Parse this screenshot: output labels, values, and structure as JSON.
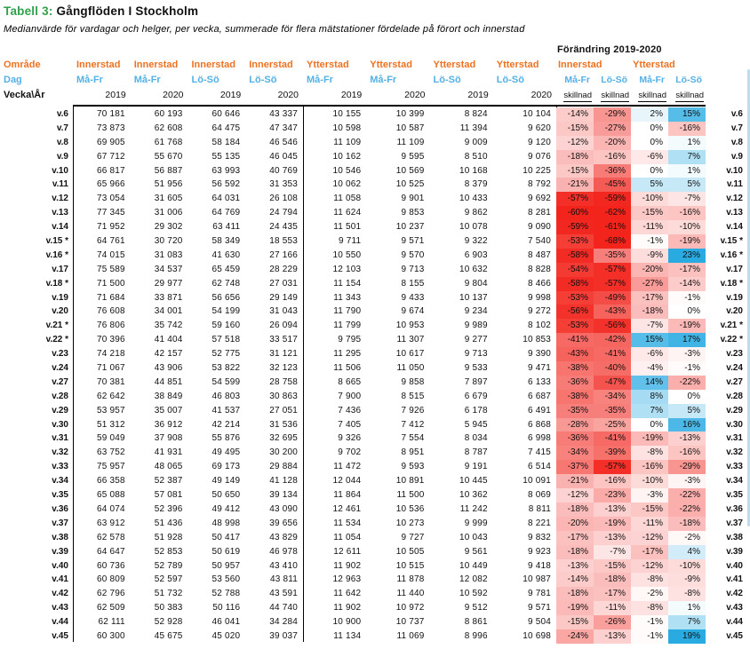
{
  "title": {
    "label": "Tabell 3:",
    "main": "Gångflöden I Stockholm"
  },
  "subtitle": "Medianvärde för vardagar och helger, per vecka, summerade för flera mätstationer fördelade på förort och innerstad",
  "table": {
    "row_labels": {
      "omrade": "Område",
      "dag": "Dag",
      "vecka": "Vecka\\År"
    },
    "area_cols": [
      "Innerstad",
      "Innerstad",
      "Innerstad",
      "Innerstad",
      "Ytterstad",
      "Ytterstad",
      "Ytterstad",
      "Ytterstad"
    ],
    "day_cols": [
      "Må-Fr",
      "Må-Fr",
      "Lö-Sö",
      "Lö-Sö",
      "Må-Fr",
      "Må-Fr",
      "Lö-Sö",
      "Lö-Sö"
    ],
    "year_cols": [
      "2019",
      "2020",
      "2019",
      "2020",
      "2019",
      "2020",
      "2019",
      "2020"
    ],
    "change": {
      "title": "Förändring 2019-2020",
      "groups": [
        "Innerstad",
        "Ytterstad"
      ],
      "days": [
        "Må-Fr",
        "Lö-Sö",
        "Må-Fr",
        "Lö-Sö"
      ],
      "skillnad": "skillnad"
    }
  },
  "colors": {
    "title_green": "#2FA14B",
    "area_orange": "#ED7221",
    "day_blue": "#53B1E6",
    "neg_full": "#F2241C",
    "pos_full": "#29ABE2",
    "scrollbar": "#BFDCEE"
  },
  "chart_data": {
    "type": "table",
    "columns": [
      "Vecka",
      "Innerstad Må-Fr 2019",
      "Innerstad Må-Fr 2020",
      "Innerstad Lö-Sö 2019",
      "Innerstad Lö-Sö 2020",
      "Ytterstad Må-Fr 2019",
      "Ytterstad Må-Fr 2020",
      "Ytterstad Lö-Sö 2019",
      "Ytterstad Lö-Sö 2020",
      "Skillnad Innerstad Må-Fr %",
      "Skillnad Innerstad Lö-Sö %",
      "Skillnad Ytterstad Må-Fr %",
      "Skillnad Ytterstad Lö-Sö %"
    ],
    "rows": [
      {
        "week": "v.6",
        "values": [
          70181,
          60193,
          60646,
          43337,
          10155,
          10399,
          8824,
          10104
        ],
        "changes": [
          -14,
          -29,
          2,
          15
        ]
      },
      {
        "week": "v.7",
        "values": [
          73873,
          62608,
          64475,
          47347,
          10598,
          10587,
          11394,
          9620
        ],
        "changes": [
          -15,
          -27,
          0,
          -16
        ]
      },
      {
        "week": "v.8",
        "values": [
          69905,
          61768,
          58184,
          46546,
          11109,
          11109,
          9009,
          9120
        ],
        "changes": [
          -12,
          -20,
          0,
          1
        ]
      },
      {
        "week": "v.9",
        "values": [
          67712,
          55670,
          55135,
          46045,
          10162,
          9595,
          8510,
          9076
        ],
        "changes": [
          -18,
          -16,
          -6,
          7
        ]
      },
      {
        "week": "v.10",
        "values": [
          66817,
          56887,
          63993,
          40769,
          10546,
          10569,
          10168,
          10225
        ],
        "changes": [
          -15,
          -36,
          0,
          1
        ]
      },
      {
        "week": "v.11",
        "values": [
          65966,
          51956,
          56592,
          31353,
          10062,
          10525,
          8379,
          8792
        ],
        "changes": [
          -21,
          -45,
          5,
          5
        ]
      },
      {
        "week": "v.12",
        "values": [
          73054,
          31605,
          64031,
          26108,
          11058,
          9901,
          10433,
          9692
        ],
        "changes": [
          -57,
          -59,
          -10,
          -7
        ]
      },
      {
        "week": "v.13",
        "values": [
          77345,
          31006,
          64769,
          24794,
          11624,
          9853,
          9862,
          8281
        ],
        "changes": [
          -60,
          -62,
          -15,
          -16
        ]
      },
      {
        "week": "v.14",
        "values": [
          71952,
          29302,
          63411,
          24435,
          11501,
          10237,
          10078,
          9090
        ],
        "changes": [
          -59,
          -61,
          -11,
          -10
        ]
      },
      {
        "week": "v.15 *",
        "values": [
          64761,
          30720,
          58349,
          18553,
          9711,
          9571,
          9322,
          7540
        ],
        "changes": [
          -53,
          -68,
          -1,
          -19
        ]
      },
      {
        "week": "v.16 *",
        "values": [
          74015,
          31083,
          41630,
          27166,
          10550,
          9570,
          6903,
          8487
        ],
        "changes": [
          -58,
          -35,
          -9,
          23
        ]
      },
      {
        "week": "v.17",
        "values": [
          75589,
          34537,
          65459,
          28229,
          12103,
          9713,
          10632,
          8828
        ],
        "changes": [
          -54,
          -57,
          -20,
          -17
        ]
      },
      {
        "week": "v.18 *",
        "values": [
          71500,
          29977,
          62748,
          27031,
          11154,
          8155,
          9804,
          8466
        ],
        "changes": [
          -58,
          -57,
          -27,
          -14
        ]
      },
      {
        "week": "v.19",
        "values": [
          71684,
          33871,
          56656,
          29149,
          11343,
          9433,
          10137,
          9998
        ],
        "changes": [
          -53,
          -49,
          -17,
          -1
        ]
      },
      {
        "week": "v.20",
        "values": [
          76608,
          34001,
          54199,
          31043,
          11790,
          9674,
          9234,
          9272
        ],
        "changes": [
          -56,
          -43,
          -18,
          0
        ]
      },
      {
        "week": "v.21 *",
        "values": [
          76806,
          35742,
          59160,
          26094,
          11799,
          10953,
          9989,
          8102
        ],
        "changes": [
          -53,
          -56,
          -7,
          -19
        ]
      },
      {
        "week": "v.22 *",
        "values": [
          70396,
          41404,
          57518,
          33517,
          9795,
          11307,
          9277,
          10853
        ],
        "changes": [
          -41,
          -42,
          15,
          17
        ]
      },
      {
        "week": "v.23",
        "values": [
          74218,
          42157,
          52775,
          31121,
          11295,
          10617,
          9713,
          9390
        ],
        "changes": [
          -43,
          -41,
          -6,
          -3
        ]
      },
      {
        "week": "v.24",
        "values": [
          71067,
          43906,
          53822,
          32123,
          11506,
          11050,
          9533,
          9471
        ],
        "changes": [
          -38,
          -40,
          -4,
          -1
        ]
      },
      {
        "week": "v.27",
        "values": [
          70381,
          44851,
          54599,
          28758,
          8665,
          9858,
          7897,
          6133
        ],
        "changes": [
          -36,
          -47,
          14,
          -22
        ]
      },
      {
        "week": "v.28",
        "values": [
          62642,
          38849,
          46803,
          30863,
          7900,
          8515,
          6679,
          6687
        ],
        "changes": [
          -38,
          -34,
          8,
          0
        ]
      },
      {
        "week": "v.29",
        "values": [
          53957,
          35007,
          41537,
          27051,
          7436,
          7926,
          6178,
          6491
        ],
        "changes": [
          -35,
          -35,
          7,
          5
        ]
      },
      {
        "week": "v.30",
        "values": [
          51312,
          36912,
          42214,
          31536,
          7405,
          7412,
          5945,
          6868
        ],
        "changes": [
          -28,
          -25,
          0,
          16
        ]
      },
      {
        "week": "v.31",
        "values": [
          59049,
          37908,
          55876,
          32695,
          9326,
          7554,
          8034,
          6998
        ],
        "changes": [
          -36,
          -41,
          -19,
          -13
        ]
      },
      {
        "week": "v.32",
        "values": [
          63752,
          41931,
          49495,
          30200,
          9702,
          8951,
          8787,
          7415
        ],
        "changes": [
          -34,
          -39,
          -8,
          -16
        ]
      },
      {
        "week": "v.33",
        "values": [
          75957,
          48065,
          69173,
          29884,
          11472,
          9593,
          9191,
          6514
        ],
        "changes": [
          -37,
          -57,
          -16,
          -29
        ]
      },
      {
        "week": "v.34",
        "values": [
          66358,
          52387,
          49149,
          41128,
          12044,
          10891,
          10445,
          10091
        ],
        "changes": [
          -21,
          -16,
          -10,
          -3
        ]
      },
      {
        "week": "v.35",
        "values": [
          65088,
          57081,
          50650,
          39134,
          11864,
          11500,
          10362,
          8069
        ],
        "changes": [
          -12,
          -23,
          -3,
          -22
        ]
      },
      {
        "week": "v.36",
        "values": [
          64074,
          52396,
          49412,
          43090,
          12461,
          10536,
          11242,
          8811
        ],
        "changes": [
          -18,
          -13,
          -15,
          -22
        ]
      },
      {
        "week": "v.37",
        "values": [
          63912,
          51436,
          48998,
          39656,
          11534,
          10273,
          9999,
          8221
        ],
        "changes": [
          -20,
          -19,
          -11,
          -18
        ]
      },
      {
        "week": "v.38",
        "values": [
          62578,
          51928,
          50417,
          43829,
          11054,
          9727,
          10043,
          9832
        ],
        "changes": [
          -17,
          -13,
          -12,
          -2
        ]
      },
      {
        "week": "v.39",
        "values": [
          64647,
          52853,
          50619,
          46978,
          12611,
          10505,
          9561,
          9923
        ],
        "changes": [
          -18,
          -7,
          -17,
          4
        ]
      },
      {
        "week": "v.40",
        "values": [
          60736,
          52789,
          50957,
          43410,
          11902,
          10515,
          10449,
          9418
        ],
        "changes": [
          -13,
          -15,
          -12,
          -10
        ]
      },
      {
        "week": "v.41",
        "values": [
          60809,
          52597,
          53560,
          43811,
          12963,
          11878,
          12082,
          10987
        ],
        "changes": [
          -14,
          -18,
          -8,
          -9
        ]
      },
      {
        "week": "v.42",
        "values": [
          62796,
          51732,
          52788,
          43591,
          11642,
          11440,
          10592,
          9781
        ],
        "changes": [
          -18,
          -17,
          -2,
          -8
        ]
      },
      {
        "week": "v.43",
        "values": [
          62509,
          50383,
          50116,
          44740,
          11902,
          10972,
          9512,
          9571
        ],
        "changes": [
          -19,
          -11,
          -8,
          1
        ]
      },
      {
        "week": "v.44",
        "values": [
          62111,
          52928,
          46041,
          34284,
          10900,
          10737,
          8861,
          9504
        ],
        "changes": [
          -15,
          -26,
          -1,
          7
        ]
      },
      {
        "week": "v.45",
        "values": [
          60300,
          45675,
          45020,
          39037,
          11134,
          11069,
          8996,
          10698
        ],
        "changes": [
          -24,
          -13,
          -1,
          19
        ]
      }
    ]
  }
}
